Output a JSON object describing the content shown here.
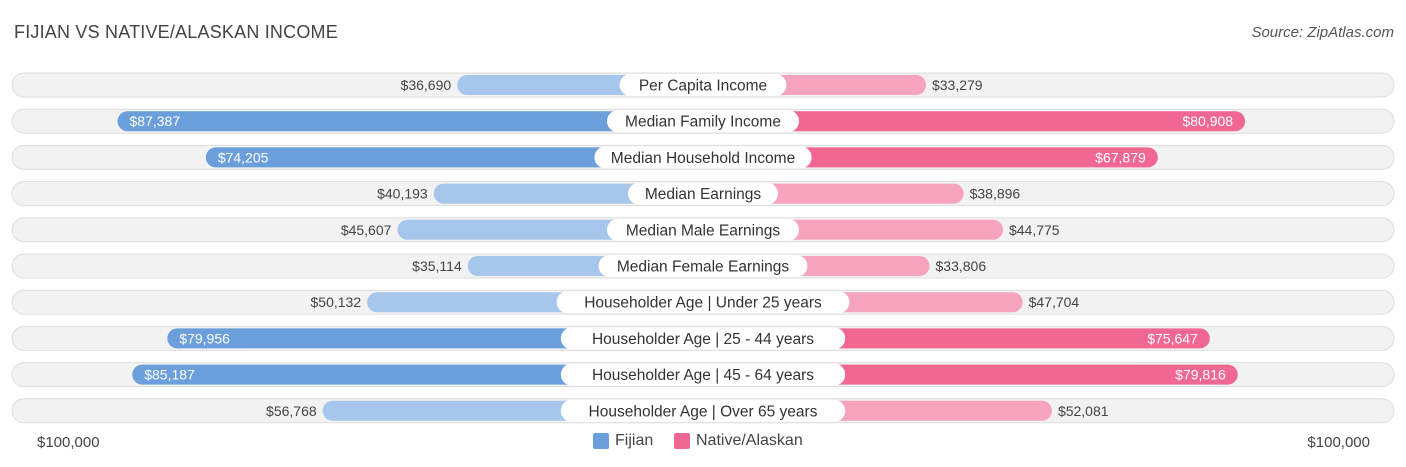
{
  "header": {
    "title": "FIJIAN VS NATIVE/ALASKAN INCOME",
    "source": "Source: ZipAtlas.com"
  },
  "chart_data": {
    "type": "bar",
    "orientation": "horizontal-diverging",
    "title": "FIJIAN VS NATIVE/ALASKAN INCOME",
    "xlim": [
      0,
      100000
    ],
    "axis_labels": {
      "left": "$100,000",
      "right": "$100,000"
    },
    "categories": [
      "Per Capita Income",
      "Median Family Income",
      "Median Household Income",
      "Median Earnings",
      "Median Male Earnings",
      "Median Female Earnings",
      "Householder Age | Under 25 years",
      "Householder Age | 25 - 44 years",
      "Householder Age | 45 - 64 years",
      "Householder Age | Over 65 years"
    ],
    "series": [
      {
        "name": "Fijian",
        "color": "#6a9fdc",
        "light_color": "#a7c6ec",
        "values": [
          36690,
          87387,
          74205,
          40193,
          45607,
          35114,
          50132,
          79956,
          85187,
          56768
        ],
        "labels": [
          "$36,690",
          "$87,387",
          "$74,205",
          "$40,193",
          "$45,607",
          "$35,114",
          "$50,132",
          "$79,956",
          "$85,187",
          "$56,768"
        ]
      },
      {
        "name": "Native/Alaskan",
        "color": "#f06892",
        "light_color": "#f6a3bd",
        "values": [
          33279,
          80908,
          67879,
          38896,
          44775,
          33806,
          47704,
          75647,
          79816,
          52081
        ],
        "labels": [
          "$33,279",
          "$80,908",
          "$67,879",
          "$38,896",
          "$44,775",
          "$33,806",
          "$47,704",
          "$75,647",
          "$79,816",
          "$52,081"
        ]
      }
    ],
    "legend": [
      "Fijian",
      "Native/Alaskan"
    ],
    "legend_position": "bottom-center"
  }
}
